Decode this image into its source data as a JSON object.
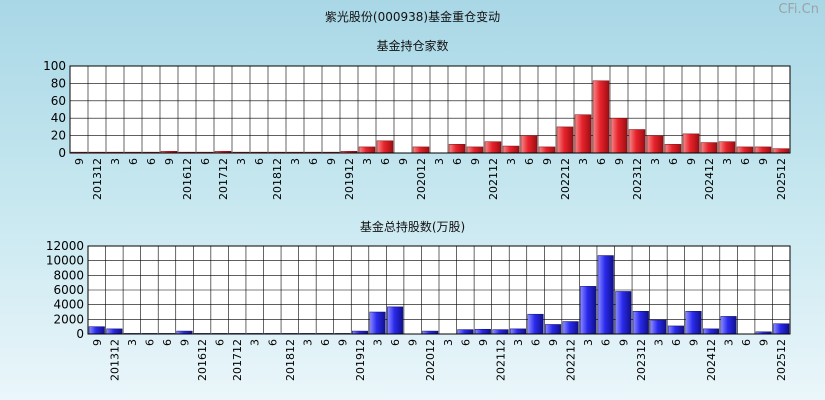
{
  "page_title": "紫光股份(000938)基金重仓变动",
  "watermark": "CFi.Cn",
  "colors": {
    "red": "#e8222b",
    "blue": "#2a2aee"
  },
  "chart_data": [
    {
      "type": "bar",
      "title": "基金持仓家数",
      "ylim": [
        0,
        100
      ],
      "yticks": [
        0,
        20,
        40,
        60,
        80,
        100
      ],
      "categories": [
        "9",
        "201312",
        "3",
        "6",
        "6",
        "9",
        "201612",
        "6",
        "201712",
        "3",
        "6",
        "201812",
        "3",
        "6",
        "9",
        "201912",
        "3",
        "6",
        "9",
        "202012",
        "3",
        "6",
        "9",
        "202112",
        "3",
        "6",
        "9",
        "202212",
        "3",
        "6",
        "9",
        "202312",
        "3",
        "6",
        "9",
        "202412",
        "3",
        "6",
        "9",
        "202512"
      ],
      "values": [
        1,
        1,
        1,
        1,
        1,
        2,
        1,
        1,
        2,
        1,
        1,
        1,
        1,
        1,
        1,
        2,
        7,
        14,
        0,
        7,
        0,
        10,
        7,
        13,
        8,
        20,
        7,
        30,
        44,
        83,
        40,
        27,
        20,
        10,
        22,
        12,
        13,
        7,
        7,
        5
      ],
      "grid": true,
      "bar_color": "red"
    },
    {
      "type": "bar",
      "title": "基金总持股数(万股)",
      "ylim": [
        0,
        12000
      ],
      "yticks": [
        0,
        2000,
        4000,
        6000,
        8000,
        10000,
        12000
      ],
      "categories": [
        "9",
        "201312",
        "3",
        "6",
        "6",
        "9",
        "201612",
        "6",
        "201712",
        "3",
        "6",
        "201812",
        "3",
        "6",
        "9",
        "201912",
        "3",
        "6",
        "9",
        "202012",
        "3",
        "6",
        "9",
        "202112",
        "3",
        "6",
        "9",
        "202212",
        "3",
        "6",
        "9",
        "202312",
        "3",
        "6",
        "9",
        "202412",
        "3",
        "6",
        "9",
        "202512"
      ],
      "values": [
        1000,
        700,
        80,
        80,
        80,
        400,
        80,
        80,
        80,
        80,
        80,
        80,
        80,
        80,
        80,
        400,
        3000,
        3700,
        0,
        400,
        0,
        600,
        650,
        600,
        700,
        2700,
        1300,
        1700,
        6500,
        10700,
        5800,
        3100,
        1900,
        1100,
        3100,
        700,
        2400,
        0,
        300,
        1400
      ],
      "grid": true,
      "bar_color": "blue"
    }
  ]
}
